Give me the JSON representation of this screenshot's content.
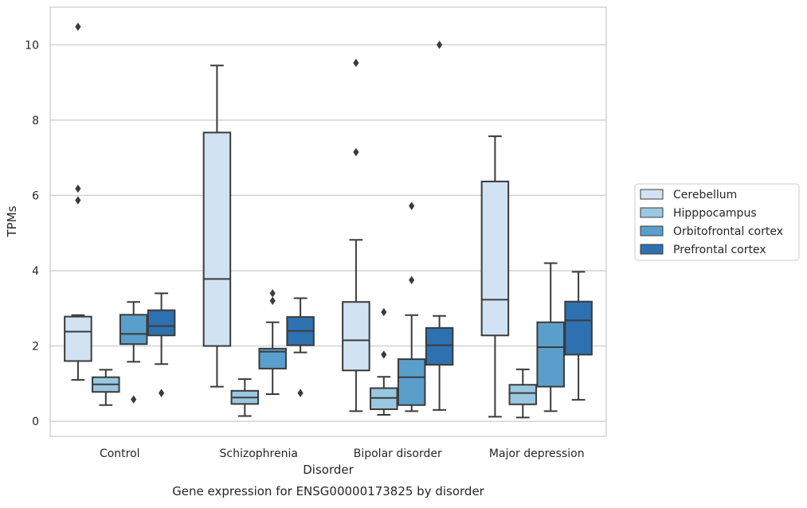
{
  "chart_data": {
    "type": "box",
    "xlabel": "Disorder",
    "ylabel": "TPMs",
    "caption": "Gene expression for ENSG00000173825 by disorder",
    "ylim": [
      -0.4,
      11
    ],
    "yticks": [
      0,
      2,
      4,
      6,
      8,
      10
    ],
    "grid": "horizontal",
    "legend_position": "right",
    "categories": [
      "Control",
      "Schizophrenia",
      "Bipolar disorder",
      "Major depression"
    ],
    "series": [
      {
        "name": "Cerebellum",
        "color": "#d1e2f2",
        "boxes": [
          {
            "whisker_low": 1.1,
            "q1": 1.6,
            "median": 2.38,
            "q3": 2.78,
            "whisker_high": 2.82,
            "outliers": [
              5.87,
              6.18,
              10.48
            ]
          },
          {
            "whisker_low": 0.92,
            "q1": 2.0,
            "median": 3.78,
            "q3": 7.67,
            "whisker_high": 9.45,
            "outliers": []
          },
          {
            "whisker_low": 0.27,
            "q1": 1.35,
            "median": 2.15,
            "q3": 3.17,
            "whisker_high": 4.82,
            "outliers": [
              7.15,
              9.52
            ]
          },
          {
            "whisker_low": 0.12,
            "q1": 2.28,
            "median": 3.23,
            "q3": 6.37,
            "whisker_high": 7.57,
            "outliers": []
          }
        ]
      },
      {
        "name": "Hipppocampus",
        "color": "#9ac8e0",
        "boxes": [
          {
            "whisker_low": 0.43,
            "q1": 0.78,
            "median": 0.98,
            "q3": 1.17,
            "whisker_high": 1.37,
            "outliers": []
          },
          {
            "whisker_low": 0.14,
            "q1": 0.46,
            "median": 0.63,
            "q3": 0.81,
            "whisker_high": 1.12,
            "outliers": []
          },
          {
            "whisker_low": 0.17,
            "q1": 0.32,
            "median": 0.62,
            "q3": 0.88,
            "whisker_high": 1.18,
            "outliers": [
              1.77,
              2.9
            ]
          },
          {
            "whisker_low": 0.1,
            "q1": 0.45,
            "median": 0.75,
            "q3": 0.97,
            "whisker_high": 1.38,
            "outliers": []
          }
        ]
      },
      {
        "name": "Orbitofrontal cortex",
        "color": "#5a9fcc",
        "boxes": [
          {
            "whisker_low": 1.58,
            "q1": 2.05,
            "median": 2.32,
            "q3": 2.83,
            "whisker_high": 3.17,
            "outliers": [
              0.58
            ]
          },
          {
            "whisker_low": 0.72,
            "q1": 1.4,
            "median": 1.85,
            "q3": 1.93,
            "whisker_high": 2.63,
            "outliers": [
              3.2,
              3.4
            ]
          },
          {
            "whisker_low": 0.27,
            "q1": 0.43,
            "median": 1.17,
            "q3": 1.65,
            "whisker_high": 2.82,
            "outliers": [
              3.75,
              5.72
            ]
          },
          {
            "whisker_low": 0.27,
            "q1": 0.92,
            "median": 1.97,
            "q3": 2.63,
            "whisker_high": 4.2,
            "outliers": []
          }
        ]
      },
      {
        "name": "Prefrontal cortex",
        "color": "#2e71b0",
        "boxes": [
          {
            "whisker_low": 1.52,
            "q1": 2.28,
            "median": 2.53,
            "q3": 2.95,
            "whisker_high": 3.4,
            "outliers": [
              0.75
            ]
          },
          {
            "whisker_low": 1.83,
            "q1": 2.02,
            "median": 2.4,
            "q3": 2.77,
            "whisker_high": 3.27,
            "outliers": [
              0.75
            ]
          },
          {
            "whisker_low": 0.3,
            "q1": 1.5,
            "median": 2.02,
            "q3": 2.48,
            "whisker_high": 2.8,
            "outliers": [
              10.0
            ]
          },
          {
            "whisker_low": 0.57,
            "q1": 1.77,
            "median": 2.68,
            "q3": 3.18,
            "whisker_high": 3.97,
            "outliers": []
          }
        ]
      }
    ]
  }
}
